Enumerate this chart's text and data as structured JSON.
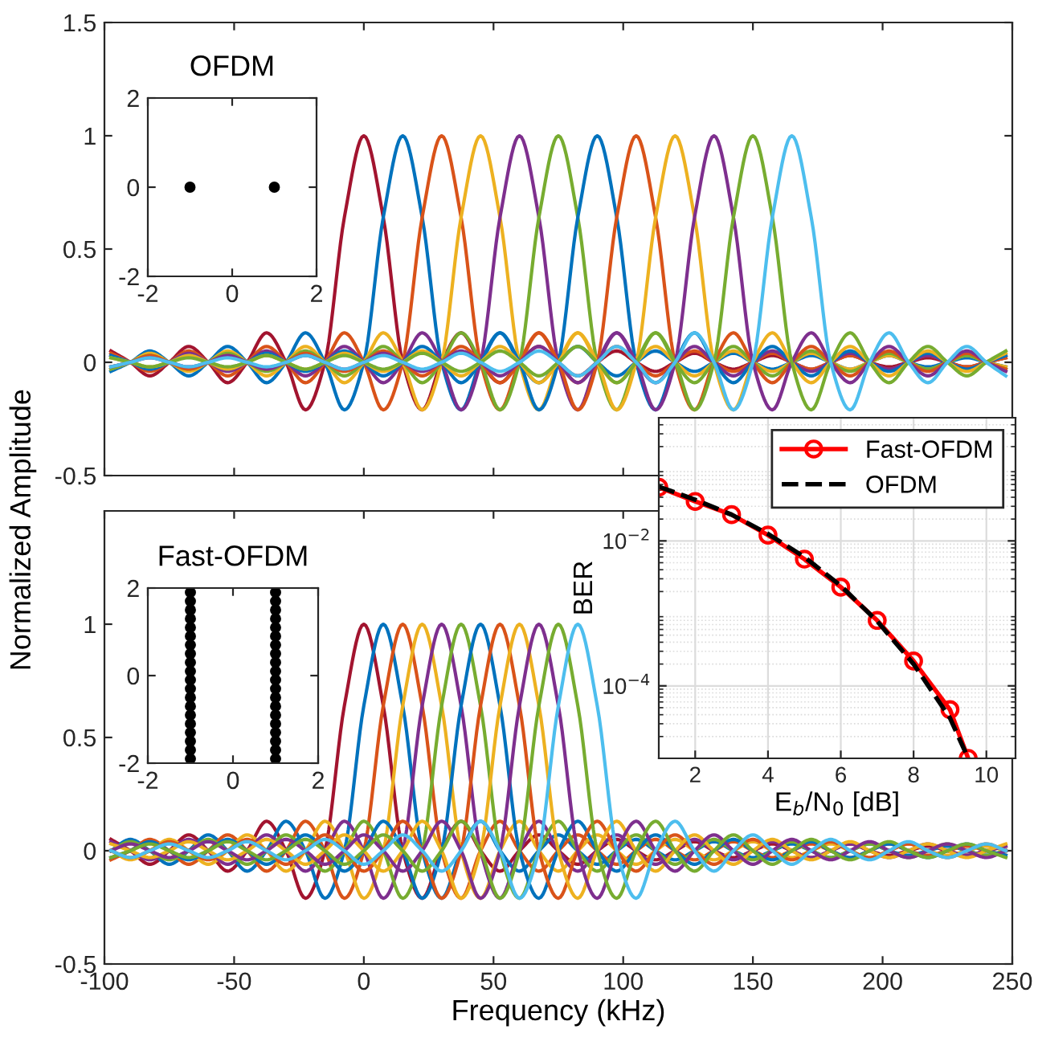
{
  "chart_data": [
    {
      "type": "line",
      "ylabel": "Normalized Amplitude",
      "xlim": [
        -100,
        250
      ],
      "ylim": [
        -0.5,
        1.5
      ],
      "xticks": [
        -100,
        -50,
        0,
        50,
        100,
        150,
        200,
        250
      ],
      "yticks": [
        -0.5,
        0,
        0.5,
        1,
        1.5
      ],
      "tick_labels": "y",
      "x": [
        -97.5,
        -90,
        -82.5,
        -75,
        -67.5,
        -60,
        -52.5,
        -45,
        -37.5,
        -30,
        -22.5,
        -15,
        -7.5,
        0,
        7.5,
        15,
        22.5,
        30,
        37.5,
        45,
        52.5,
        60,
        67.5,
        75,
        82.5,
        90,
        97.5,
        105,
        112.5,
        120,
        127.5,
        135,
        142.5,
        150,
        157.5,
        165,
        172.5,
        180,
        187.5,
        195,
        202.5,
        210,
        217.5,
        225,
        232.5,
        240,
        247.5
      ],
      "series": [
        {
          "color": "#a2142f",
          "values": [
            0.05,
            0,
            -0.06,
            0,
            0.07,
            0,
            -0.09,
            0,
            0.13,
            0,
            -0.21,
            0,
            0.64,
            1,
            0.64,
            0,
            -0.21,
            0,
            0.13,
            0,
            -0.09,
            0,
            0.07,
            0,
            -0.06,
            0,
            0.05,
            0,
            -0.04,
            0,
            0.04,
            0,
            -0.03,
            0,
            0.03,
            0,
            -0.03,
            0,
            0.03,
            0,
            -0.02,
            0,
            0.02,
            0,
            -0.02,
            0,
            0.02
          ]
        },
        {
          "color": "#0072bd",
          "values": [
            -0.04,
            0,
            0.05,
            0,
            -0.06,
            0,
            0.07,
            0,
            -0.09,
            0,
            0.13,
            0,
            -0.21,
            0,
            0.64,
            1,
            0.64,
            0,
            -0.21,
            0,
            0.13,
            0,
            -0.09,
            0,
            0.07,
            0,
            -0.06,
            0,
            0.05,
            0,
            -0.04,
            0,
            0.04,
            0,
            -0.03,
            0,
            0.03,
            0,
            -0.03,
            0,
            0.03,
            0,
            -0.02,
            0,
            0.02,
            0,
            -0.02
          ]
        },
        {
          "color": "#d95319",
          "values": [
            0.04,
            0,
            -0.04,
            0,
            0.05,
            0,
            -0.06,
            0,
            0.07,
            0,
            -0.09,
            0,
            0.13,
            0,
            -0.21,
            0,
            0.64,
            1,
            0.64,
            0,
            -0.21,
            0,
            0.13,
            0,
            -0.09,
            0,
            0.07,
            0,
            -0.06,
            0,
            0.05,
            0,
            -0.04,
            0,
            0.04,
            0,
            -0.03,
            0,
            0.03,
            0,
            -0.03,
            0,
            0.03,
            0,
            -0.02,
            0,
            0.02
          ]
        },
        {
          "color": "#edb120",
          "values": [
            -0.03,
            0,
            0.04,
            0,
            -0.04,
            0,
            0.05,
            0,
            -0.06,
            0,
            0.07,
            0,
            -0.09,
            0,
            0.13,
            0,
            -0.21,
            0,
            0.64,
            1,
            0.64,
            0,
            -0.21,
            0,
            0.13,
            0,
            -0.09,
            0,
            0.07,
            0,
            -0.06,
            0,
            0.05,
            0,
            -0.04,
            0,
            0.04,
            0,
            -0.03,
            0,
            0.03,
            0,
            -0.03,
            0,
            0.03,
            0,
            -0.02
          ]
        },
        {
          "color": "#7e2f8e",
          "values": [
            0.03,
            0,
            -0.03,
            0,
            0.04,
            0,
            -0.04,
            0,
            0.05,
            0,
            -0.06,
            0,
            0.07,
            0,
            -0.09,
            0,
            0.13,
            0,
            -0.21,
            0,
            0.64,
            1,
            0.64,
            0,
            -0.21,
            0,
            0.13,
            0,
            -0.09,
            0,
            0.07,
            0,
            -0.06,
            0,
            0.05,
            0,
            -0.04,
            0,
            0.04,
            0,
            -0.03,
            0,
            0.03,
            0,
            -0.03,
            0,
            0.03
          ]
        },
        {
          "color": "#77ac30",
          "values": [
            -0.03,
            0,
            0.03,
            0,
            -0.03,
            0,
            0.04,
            0,
            -0.04,
            0,
            0.05,
            0,
            -0.06,
            0,
            0.07,
            0,
            -0.09,
            0,
            0.13,
            0,
            -0.21,
            0,
            0.64,
            1,
            0.64,
            0,
            -0.21,
            0,
            0.13,
            0,
            -0.09,
            0,
            0.07,
            0,
            -0.06,
            0,
            0.05,
            0,
            -0.04,
            0,
            0.04,
            0,
            -0.03,
            0,
            0.03,
            0,
            -0.03
          ]
        },
        {
          "color": "#0072bd",
          "values": [
            0.03,
            0,
            -0.03,
            0,
            0.03,
            0,
            -0.03,
            0,
            0.04,
            0,
            -0.04,
            0,
            0.05,
            0,
            -0.06,
            0,
            0.07,
            0,
            -0.09,
            0,
            0.13,
            0,
            -0.21,
            0,
            0.64,
            1,
            0.64,
            0,
            -0.21,
            0,
            0.13,
            0,
            -0.09,
            0,
            0.07,
            0,
            -0.06,
            0,
            0.05,
            0,
            -0.04,
            0,
            0.04,
            0,
            -0.03,
            0,
            0.03
          ]
        },
        {
          "color": "#d95319",
          "values": [
            -0.02,
            0,
            0.03,
            0,
            -0.03,
            0,
            0.03,
            0,
            -0.03,
            0,
            0.04,
            0,
            -0.04,
            0,
            0.05,
            0,
            -0.06,
            0,
            0.07,
            0,
            -0.09,
            0,
            0.13,
            0,
            -0.21,
            0,
            0.64,
            1,
            0.64,
            0,
            -0.21,
            0,
            0.13,
            0,
            -0.09,
            0,
            0.07,
            0,
            -0.06,
            0,
            0.05,
            0,
            -0.04,
            0,
            0.04,
            0,
            -0.03
          ]
        },
        {
          "color": "#edb120",
          "values": [
            0.02,
            0,
            -0.02,
            0,
            0.03,
            0,
            -0.03,
            0,
            0.03,
            0,
            -0.03,
            0,
            0.04,
            0,
            -0.04,
            0,
            0.05,
            0,
            -0.06,
            0,
            0.07,
            0,
            -0.09,
            0,
            0.13,
            0,
            -0.21,
            0,
            0.64,
            1,
            0.64,
            0,
            -0.21,
            0,
            0.13,
            0,
            -0.09,
            0,
            0.07,
            0,
            -0.06,
            0,
            0.05,
            0,
            -0.04,
            0,
            0.04
          ]
        },
        {
          "color": "#7e2f8e",
          "values": [
            -0.02,
            0,
            0.02,
            0,
            -0.02,
            0,
            0.03,
            0,
            -0.03,
            0,
            0.03,
            0,
            -0.03,
            0,
            0.04,
            0,
            -0.04,
            0,
            0.05,
            0,
            -0.06,
            0,
            0.07,
            0,
            -0.09,
            0,
            0.13,
            0,
            -0.21,
            0,
            0.64,
            1,
            0.64,
            0,
            -0.21,
            0,
            0.13,
            0,
            -0.09,
            0,
            0.07,
            0,
            -0.06,
            0,
            0.05,
            0,
            -0.04
          ]
        },
        {
          "color": "#77ac30",
          "values": [
            0.02,
            0,
            -0.02,
            0,
            0.02,
            0,
            -0.02,
            0,
            0.03,
            0,
            -0.03,
            0,
            0.03,
            0,
            -0.03,
            0,
            0.04,
            0,
            -0.04,
            0,
            0.05,
            0,
            -0.06,
            0,
            0.07,
            0,
            -0.09,
            0,
            0.13,
            0,
            -0.21,
            0,
            0.64,
            1,
            0.64,
            0,
            -0.21,
            0,
            0.13,
            0,
            -0.09,
            0,
            0.07,
            0,
            -0.06,
            0,
            0.05
          ]
        },
        {
          "color": "#4dbeee",
          "values": [
            -0.02,
            0,
            0.02,
            0,
            -0.02,
            0,
            0.02,
            0,
            -0.02,
            0,
            0.03,
            0,
            -0.03,
            0,
            0.03,
            0,
            -0.03,
            0,
            0.04,
            0,
            -0.04,
            0,
            0.05,
            0,
            -0.06,
            0,
            0.07,
            0,
            -0.09,
            0,
            0.13,
            0,
            -0.21,
            0,
            0.64,
            1,
            0.64,
            0,
            -0.21,
            0,
            0.13,
            0,
            -0.09,
            0,
            0.07,
            0,
            -0.06
          ]
        }
      ]
    },
    {
      "type": "scatter",
      "title": "OFDM",
      "xlim": [
        -2,
        2
      ],
      "ylim": [
        -2,
        2
      ],
      "xticks": [
        -2,
        0,
        2
      ],
      "yticks": [
        -2,
        0,
        2
      ],
      "marker": "circle",
      "series": [
        {
          "color": "#000000",
          "x": [
            -1,
            1
          ],
          "values": [
            0,
            0
          ]
        }
      ]
    },
    {
      "type": "line",
      "xlabel": "E$_{b}$/N$_{0}$ [dB]",
      "ylabel": "BER",
      "log": "y",
      "xlim": [
        1,
        10.8
      ],
      "ylim": [
        1e-05,
        0.5
      ],
      "xticks": [
        2,
        4,
        6,
        8,
        10
      ],
      "yticks": [
        {
          "value": 0.01,
          "label": "10$^{−2}$"
        },
        {
          "value": 0.0001,
          "label": "10$^{−4}$"
        }
      ],
      "grid": true,
      "legend": "top right",
      "series": [
        {
          "name": "Fast-OFDM",
          "color": "#ff0000",
          "marker": "circle",
          "line_style": "solid",
          "x": [
            1,
            2,
            3,
            4,
            5,
            6,
            7,
            8,
            9,
            9.5
          ],
          "values": [
            0.055,
            0.035,
            0.023,
            0.012,
            0.0056,
            0.0023,
            0.0008,
            0.00022,
            4.7e-05,
            1e-05
          ]
        },
        {
          "name": "OFDM",
          "color": "#000000",
          "marker": "none",
          "line_style": "dashed",
          "x": [
            1,
            2,
            3,
            4,
            5,
            6,
            7,
            8,
            9,
            9.5
          ],
          "values": [
            0.056,
            0.037,
            0.023,
            0.0125,
            0.006,
            0.0024,
            0.00078,
            0.0002,
            3.6e-05,
            1e-05
          ]
        }
      ]
    },
    {
      "type": "line",
      "xlabel": "Frequency (kHz)",
      "xlim": [
        -100,
        250
      ],
      "ylim": [
        -0.5,
        1.5
      ],
      "xticks": [
        -100,
        -50,
        0,
        50,
        100,
        150,
        200,
        250
      ],
      "yticks": [
        -0.5,
        0,
        0.5,
        1
      ],
      "x": [
        -97.5,
        -90,
        -82.5,
        -75,
        -67.5,
        -60,
        -52.5,
        -45,
        -37.5,
        -30,
        -22.5,
        -15,
        -7.5,
        0,
        7.5,
        15,
        22.5,
        30,
        37.5,
        45,
        52.5,
        60,
        67.5,
        75,
        82.5,
        90,
        97.5,
        105,
        112.5,
        120,
        127.5,
        135,
        142.5,
        150,
        157.5,
        165,
        172.5,
        180,
        187.5,
        195,
        202.5,
        210,
        217.5,
        225,
        232.5,
        240,
        247.5
      ],
      "series": [
        {
          "color": "#a2142f",
          "values": [
            0.05,
            0,
            -0.06,
            0,
            0.07,
            0,
            -0.09,
            0,
            0.13,
            0,
            -0.21,
            0,
            0.64,
            1,
            0.64,
            0,
            -0.21,
            0,
            0.13,
            0,
            -0.09,
            0,
            0.07,
            0,
            -0.06,
            0,
            0.05,
            0,
            -0.04,
            0,
            0.04,
            0,
            -0.03,
            0,
            0.03,
            0,
            -0.03,
            0,
            0.03,
            0,
            -0.02,
            0,
            0.02,
            0,
            -0.02,
            0,
            0.02
          ]
        },
        {
          "color": "#0072bd",
          "values": [
            0,
            0.05,
            0,
            -0.06,
            0,
            0.07,
            0,
            -0.09,
            0,
            0.13,
            0,
            -0.21,
            0,
            0.64,
            1,
            0.64,
            0,
            -0.21,
            0,
            0.13,
            0,
            -0.09,
            0,
            0.07,
            0,
            -0.06,
            0,
            0.05,
            0,
            -0.04,
            0,
            0.04,
            0,
            -0.03,
            0,
            0.03,
            0,
            -0.03,
            0,
            0.03,
            0,
            -0.02,
            0,
            0.02,
            0,
            -0.02,
            0
          ]
        },
        {
          "color": "#d95319",
          "values": [
            -0.04,
            0,
            0.05,
            0,
            -0.06,
            0,
            0.07,
            0,
            -0.09,
            0,
            0.13,
            0,
            -0.21,
            0,
            0.64,
            1,
            0.64,
            0,
            -0.21,
            0,
            0.13,
            0,
            -0.09,
            0,
            0.07,
            0,
            -0.06,
            0,
            0.05,
            0,
            -0.04,
            0,
            0.04,
            0,
            -0.03,
            0,
            0.03,
            0,
            -0.03,
            0,
            0.03,
            0,
            -0.02,
            0,
            0.02,
            0,
            -0.02
          ]
        },
        {
          "color": "#edb120",
          "values": [
            0,
            -0.04,
            0,
            0.05,
            0,
            -0.06,
            0,
            0.07,
            0,
            -0.09,
            0,
            0.13,
            0,
            -0.21,
            0,
            0.64,
            1,
            0.64,
            0,
            -0.21,
            0,
            0.13,
            0,
            -0.09,
            0,
            0.07,
            0,
            -0.06,
            0,
            0.05,
            0,
            -0.04,
            0,
            0.04,
            0,
            -0.03,
            0,
            0.03,
            0,
            -0.03,
            0,
            0.03,
            0,
            -0.02,
            0,
            0.02,
            0
          ]
        },
        {
          "color": "#7e2f8e",
          "values": [
            0.04,
            0,
            -0.04,
            0,
            0.05,
            0,
            -0.06,
            0,
            0.07,
            0,
            -0.09,
            0,
            0.13,
            0,
            -0.21,
            0,
            0.64,
            1,
            0.64,
            0,
            -0.21,
            0,
            0.13,
            0,
            -0.09,
            0,
            0.07,
            0,
            -0.06,
            0,
            0.05,
            0,
            -0.04,
            0,
            0.04,
            0,
            -0.03,
            0,
            0.03,
            0,
            -0.03,
            0,
            0.03,
            0,
            -0.02,
            0,
            0.02
          ]
        },
        {
          "color": "#77ac30",
          "values": [
            0,
            0.04,
            0,
            -0.04,
            0,
            0.05,
            0,
            -0.06,
            0,
            0.07,
            0,
            -0.09,
            0,
            0.13,
            0,
            -0.21,
            0,
            0.64,
            1,
            0.64,
            0,
            -0.21,
            0,
            0.13,
            0,
            -0.09,
            0,
            0.07,
            0,
            -0.06,
            0,
            0.05,
            0,
            -0.04,
            0,
            0.04,
            0,
            -0.03,
            0,
            0.03,
            0,
            -0.03,
            0,
            0.03,
            0,
            -0.02,
            0
          ]
        },
        {
          "color": "#0072bd",
          "values": [
            -0.03,
            0,
            0.04,
            0,
            -0.04,
            0,
            0.05,
            0,
            -0.06,
            0,
            0.07,
            0,
            -0.09,
            0,
            0.13,
            0,
            -0.21,
            0,
            0.64,
            1,
            0.64,
            0,
            -0.21,
            0,
            0.13,
            0,
            -0.09,
            0,
            0.07,
            0,
            -0.06,
            0,
            0.05,
            0,
            -0.04,
            0,
            0.04,
            0,
            -0.03,
            0,
            0.03,
            0,
            -0.03,
            0,
            0.03,
            0,
            -0.02
          ]
        },
        {
          "color": "#d95319",
          "values": [
            0,
            -0.03,
            0,
            0.04,
            0,
            -0.04,
            0,
            0.05,
            0,
            -0.06,
            0,
            0.07,
            0,
            -0.09,
            0,
            0.13,
            0,
            -0.21,
            0,
            0.64,
            1,
            0.64,
            0,
            -0.21,
            0,
            0.13,
            0,
            -0.09,
            0,
            0.07,
            0,
            -0.06,
            0,
            0.05,
            0,
            -0.04,
            0,
            0.04,
            0,
            -0.03,
            0,
            0.03,
            0,
            -0.03,
            0,
            0.03,
            0
          ]
        },
        {
          "color": "#edb120",
          "values": [
            0.03,
            0,
            -0.03,
            0,
            0.04,
            0,
            -0.04,
            0,
            0.05,
            0,
            -0.06,
            0,
            0.07,
            0,
            -0.09,
            0,
            0.13,
            0,
            -0.21,
            0,
            0.64,
            1,
            0.64,
            0,
            -0.21,
            0,
            0.13,
            0,
            -0.09,
            0,
            0.07,
            0,
            -0.06,
            0,
            0.05,
            0,
            -0.04,
            0,
            0.04,
            0,
            -0.03,
            0,
            0.03,
            0,
            -0.03,
            0,
            0.03
          ]
        },
        {
          "color": "#7e2f8e",
          "values": [
            0,
            0.03,
            0,
            -0.03,
            0,
            0.04,
            0,
            -0.04,
            0,
            0.05,
            0,
            -0.06,
            0,
            0.07,
            0,
            -0.09,
            0,
            0.13,
            0,
            -0.21,
            0,
            0.64,
            1,
            0.64,
            0,
            -0.21,
            0,
            0.13,
            0,
            -0.09,
            0,
            0.07,
            0,
            -0.06,
            0,
            0.05,
            0,
            -0.04,
            0,
            0.04,
            0,
            -0.03,
            0,
            0.03,
            0,
            -0.03,
            0
          ]
        },
        {
          "color": "#77ac30",
          "values": [
            -0.03,
            0,
            0.03,
            0,
            -0.03,
            0,
            0.04,
            0,
            -0.04,
            0,
            0.05,
            0,
            -0.06,
            0,
            0.07,
            0,
            -0.09,
            0,
            0.13,
            0,
            -0.21,
            0,
            0.64,
            1,
            0.64,
            0,
            -0.21,
            0,
            0.13,
            0,
            -0.09,
            0,
            0.07,
            0,
            -0.06,
            0,
            0.05,
            0,
            -0.04,
            0,
            0.04,
            0,
            -0.03,
            0,
            0.03,
            0,
            -0.03
          ]
        },
        {
          "color": "#4dbeee",
          "values": [
            0,
            -0.03,
            0,
            0.03,
            0,
            -0.03,
            0,
            0.04,
            0,
            -0.04,
            0,
            0.05,
            0,
            -0.06,
            0,
            0.07,
            0,
            -0.09,
            0,
            0.13,
            0,
            -0.21,
            0,
            0.64,
            1,
            0.64,
            0,
            -0.21,
            0,
            0.13,
            0,
            -0.09,
            0,
            0.07,
            0,
            -0.06,
            0,
            0.05,
            0,
            -0.04,
            0,
            0.04,
            0,
            -0.03,
            0,
            0.03,
            0
          ]
        }
      ]
    },
    {
      "type": "scatter",
      "title": "Fast-OFDM",
      "xlim": [
        -2,
        2
      ],
      "ylim": [
        -2,
        2
      ],
      "xticks": [
        -2,
        0,
        2
      ],
      "yticks": [
        -2,
        0,
        2
      ],
      "marker": "circle",
      "series": [
        {
          "color": "#000000",
          "x": [
            -1,
            -1,
            -1,
            -1,
            -1,
            -1,
            -1,
            -1,
            -1,
            -1,
            -1,
            -1,
            -1,
            -1,
            -1,
            -1,
            -1,
            -1,
            -1,
            -1,
            1,
            1,
            1,
            1,
            1,
            1,
            1,
            1,
            1,
            1,
            1,
            1,
            1,
            1,
            1,
            1,
            1,
            1,
            1,
            1
          ],
          "values": [
            -1.9,
            -1.7,
            -1.5,
            -1.3,
            -1.1,
            -0.9,
            -0.7,
            -0.5,
            -0.3,
            -0.1,
            0.1,
            0.3,
            0.5,
            0.7,
            0.9,
            1.1,
            1.3,
            1.5,
            1.7,
            1.9,
            -1.9,
            -1.7,
            -1.5,
            -1.3,
            -1.1,
            -0.9,
            -0.7,
            -0.5,
            -0.3,
            -0.1,
            0.1,
            0.3,
            0.5,
            0.7,
            0.9,
            1.1,
            1.3,
            1.5,
            1.7,
            1.9
          ]
        }
      ]
    }
  ]
}
